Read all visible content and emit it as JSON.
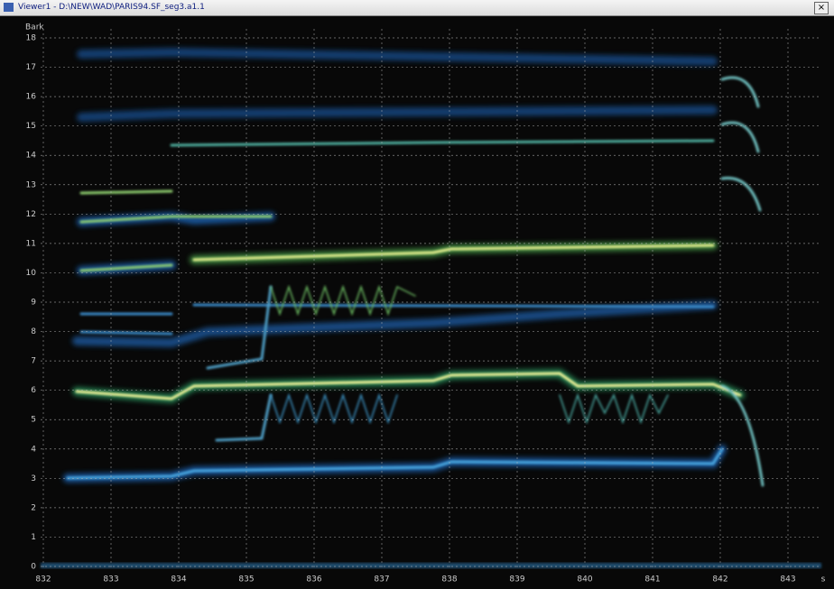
{
  "window": {
    "title": "Viewer1 - D:\\NEW\\WAD\\PARIS94.SF_seg3.a1.1",
    "close": "×"
  },
  "plot": {
    "y_unit": "Bark",
    "y_labels": [
      "0",
      "1",
      "2",
      "3",
      "4",
      "5",
      "6",
      "7",
      "8",
      "9",
      "10",
      "11",
      "12",
      "13",
      "14",
      "15",
      "16",
      "17",
      "18"
    ],
    "x_labels": [
      "832",
      "833",
      "834",
      "835",
      "836",
      "837",
      "838",
      "839",
      "840",
      "841",
      "842",
      "843"
    ],
    "x_unit": "s"
  }
}
